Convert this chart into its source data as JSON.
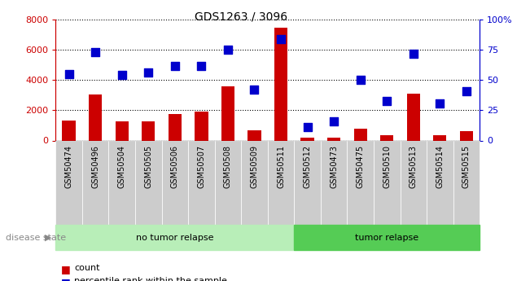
{
  "title": "GDS1263 / 3096",
  "samples": [
    "GSM50474",
    "GSM50496",
    "GSM50504",
    "GSM50505",
    "GSM50506",
    "GSM50507",
    "GSM50508",
    "GSM50509",
    "GSM50511",
    "GSM50512",
    "GSM50473",
    "GSM50475",
    "GSM50510",
    "GSM50513",
    "GSM50514",
    "GSM50515"
  ],
  "counts": [
    1300,
    3050,
    1250,
    1270,
    1750,
    1900,
    3600,
    700,
    7450,
    200,
    180,
    800,
    350,
    3100,
    330,
    600
  ],
  "percentiles": [
    55,
    73,
    54,
    56,
    62,
    62,
    75,
    42,
    84,
    11,
    16,
    50,
    33,
    72,
    31,
    41
  ],
  "no_tumor_count": 9,
  "groups": [
    {
      "label": "no tumor relapse",
      "start": 0,
      "end": 9,
      "color": "#B8EEB8"
    },
    {
      "label": "tumor relapse",
      "start": 9,
      "end": 16,
      "color": "#55CC55"
    }
  ],
  "bar_color": "#CC0000",
  "dot_color": "#0000CC",
  "ylim_left": [
    0,
    8000
  ],
  "ylim_right": [
    0,
    100
  ],
  "yticks_left": [
    0,
    2000,
    4000,
    6000,
    8000
  ],
  "yticks_right": [
    0,
    25,
    50,
    75,
    100
  ],
  "bar_width": 0.5,
  "dot_size": 55,
  "tick_label_color": "#333333",
  "gray_col_color": "#CCCCCC",
  "left_axis_color": "#CC0000",
  "right_axis_color": "#0000CC"
}
